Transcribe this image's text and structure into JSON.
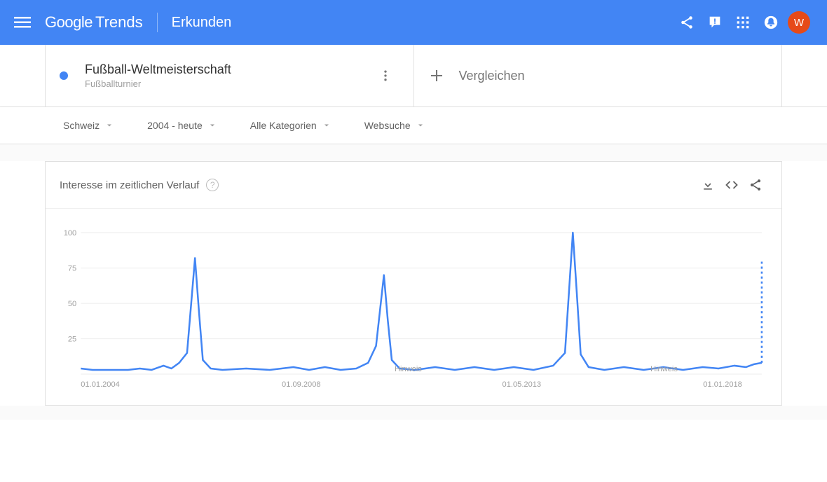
{
  "header": {
    "logo_prefix": "Google",
    "logo_suffix": "Trends",
    "section_title": "Erkunden",
    "avatar_letter": "W",
    "avatar_bg": "#e64a19",
    "bg_color": "#4285f4"
  },
  "term": {
    "title": "Fußball-Weltmeisterschaft",
    "subtitle": "Fußballturnier",
    "dot_color": "#4285f4"
  },
  "compare": {
    "label": "Vergleichen"
  },
  "filters": {
    "region": "Schweiz",
    "timerange": "2004 - heute",
    "category": "Alle Kategorien",
    "type": "Websuche"
  },
  "panel": {
    "title": "Interesse im zeitlichen Verlauf"
  },
  "chart": {
    "type": "line",
    "line_color": "#4285f4",
    "line_width": 2.5,
    "background_color": "#ffffff",
    "grid_color": "#eeeeee",
    "ylim": [
      0,
      100
    ],
    "yticks": [
      25,
      50,
      75,
      100
    ],
    "x_start_label": "01.01.2004",
    "x_mid_label": "01.09.2008",
    "x_mid2_label": "01.05.2013",
    "x_end_label": "01.01.2018",
    "x_range_months": [
      0,
      173
    ],
    "x_tick_positions": [
      0,
      56,
      112,
      168
    ],
    "notes": [
      {
        "label": "Hinweis",
        "x_month": 79
      },
      {
        "label": "Hinweis",
        "x_month": 144
      }
    ],
    "projection": {
      "x_month": 173,
      "y_start": 8,
      "y_end": 80,
      "dash": "3,4"
    },
    "series": [
      {
        "x": 0,
        "y": 4
      },
      {
        "x": 3,
        "y": 3
      },
      {
        "x": 6,
        "y": 3
      },
      {
        "x": 9,
        "y": 3
      },
      {
        "x": 12,
        "y": 3
      },
      {
        "x": 15,
        "y": 4
      },
      {
        "x": 18,
        "y": 3
      },
      {
        "x": 21,
        "y": 6
      },
      {
        "x": 23,
        "y": 4
      },
      {
        "x": 25,
        "y": 8
      },
      {
        "x": 27,
        "y": 15
      },
      {
        "x": 29,
        "y": 82
      },
      {
        "x": 30,
        "y": 45
      },
      {
        "x": 31,
        "y": 10
      },
      {
        "x": 33,
        "y": 4
      },
      {
        "x": 36,
        "y": 3
      },
      {
        "x": 42,
        "y": 4
      },
      {
        "x": 48,
        "y": 3
      },
      {
        "x": 54,
        "y": 5
      },
      {
        "x": 58,
        "y": 3
      },
      {
        "x": 62,
        "y": 5
      },
      {
        "x": 66,
        "y": 3
      },
      {
        "x": 70,
        "y": 4
      },
      {
        "x": 73,
        "y": 8
      },
      {
        "x": 75,
        "y": 20
      },
      {
        "x": 77,
        "y": 70
      },
      {
        "x": 78,
        "y": 38
      },
      {
        "x": 79,
        "y": 10
      },
      {
        "x": 81,
        "y": 4
      },
      {
        "x": 85,
        "y": 3
      },
      {
        "x": 90,
        "y": 5
      },
      {
        "x": 95,
        "y": 3
      },
      {
        "x": 100,
        "y": 5
      },
      {
        "x": 105,
        "y": 3
      },
      {
        "x": 110,
        "y": 5
      },
      {
        "x": 115,
        "y": 3
      },
      {
        "x": 120,
        "y": 6
      },
      {
        "x": 123,
        "y": 15
      },
      {
        "x": 125,
        "y": 100
      },
      {
        "x": 126,
        "y": 58
      },
      {
        "x": 127,
        "y": 14
      },
      {
        "x": 129,
        "y": 5
      },
      {
        "x": 133,
        "y": 3
      },
      {
        "x": 138,
        "y": 5
      },
      {
        "x": 143,
        "y": 3
      },
      {
        "x": 148,
        "y": 5
      },
      {
        "x": 153,
        "y": 3
      },
      {
        "x": 158,
        "y": 5
      },
      {
        "x": 162,
        "y": 4
      },
      {
        "x": 166,
        "y": 6
      },
      {
        "x": 169,
        "y": 5
      },
      {
        "x": 171,
        "y": 7
      },
      {
        "x": 173,
        "y": 8
      }
    ]
  }
}
